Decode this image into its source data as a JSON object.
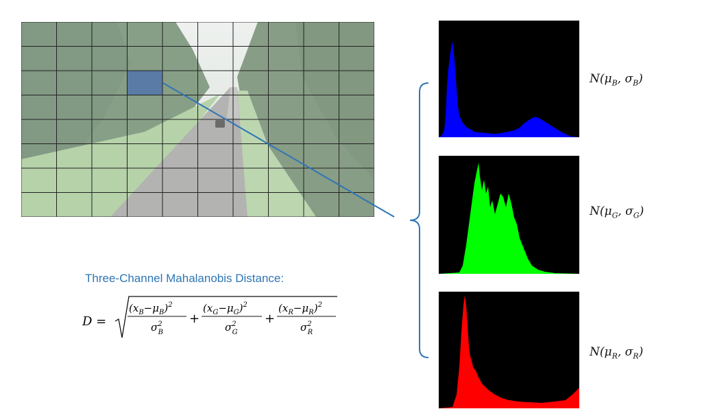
{
  "title": "Three-Channel Mahalanobis Distance:",
  "formula": {
    "lhs": "D =",
    "terms": [
      {
        "num": "(x",
        "ch": "B",
        "mu": "−μ",
        "den_ch": "B"
      },
      {
        "num": "(x",
        "ch": "G",
        "mu": "−μ",
        "den_ch": "G"
      },
      {
        "num": "(x",
        "ch": "R",
        "mu": "−μ",
        "den_ch": "R"
      }
    ],
    "plus": "+"
  },
  "labels": {
    "blue": {
      "prefix": "N(μ",
      "sub1": "B",
      "mid": ", σ",
      "sub2": "B",
      "suffix": ")"
    },
    "green": {
      "prefix": "N(μ",
      "sub1": "G",
      "mid": ", σ",
      "sub2": "G",
      "suffix": ")"
    },
    "red": {
      "prefix": "N(μ",
      "sub1": "R",
      "mid": ", σ",
      "sub2": "R",
      "suffix": ")"
    }
  },
  "colors": {
    "blue_channel": "#0000ff",
    "green_channel": "#00ff00",
    "red_channel": "#ff0000",
    "accent": "#2e75b6",
    "grid": "#222222",
    "selected_cell": "#4a6fb0"
  },
  "grid": {
    "rows": 8,
    "cols": 10,
    "selected_row": 2,
    "selected_col": 3
  }
}
